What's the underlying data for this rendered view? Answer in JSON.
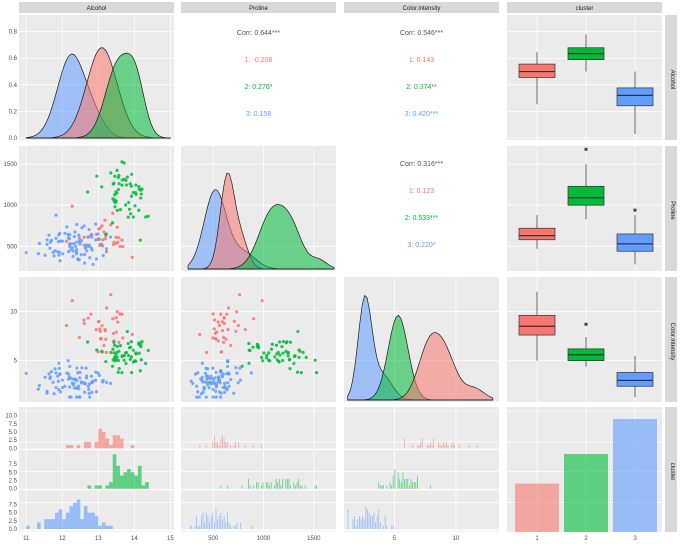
{
  "chart_data": {
    "type": "pairs-matrix",
    "variables": [
      "Alcohol",
      "Proline",
      "Color.intensity",
      "cluster"
    ],
    "clusters": [
      "1",
      "2",
      "3"
    ],
    "colors": {
      "1": "#F8766D",
      "2": "#00BA38",
      "3": "#619CFF"
    },
    "correlations": [
      {
        "pair": "Alcohol-Proline",
        "overall": "Corr: 0.644***",
        "by_cluster": [
          "1: -0.208",
          "2: 0.276*",
          "3: 0.158"
        ]
      },
      {
        "pair": "Alcohol-Color.intensity",
        "overall": "Corr: 0.546***",
        "by_cluster": [
          "1: 0.143",
          "2: 0.374**",
          "3: 0.420***"
        ]
      },
      {
        "pair": "Proline-Color.intensity",
        "overall": "Corr: 0.316***",
        "by_cluster": [
          "1: 0.123",
          "2: 0.533***",
          "3: 0.220*"
        ]
      }
    ],
    "axis_ticks": {
      "Alcohol": [
        "11",
        "12",
        "13",
        "14",
        "15"
      ],
      "Proline": [
        "500",
        "1000",
        "1500"
      ],
      "Color.intensity": [
        "5",
        "10"
      ],
      "cluster": [
        "1",
        "2",
        "3"
      ],
      "alcohol_density_y": [
        "0.0",
        "0.2",
        "0.4",
        "0.6",
        "0.8"
      ],
      "proline_y": [
        "500",
        "1000",
        "1500"
      ],
      "color_y": [
        "5",
        "10"
      ],
      "count_y": [
        "0.0",
        "2.5",
        "5.0",
        "7.5",
        "10.0"
      ]
    },
    "cluster_counts": [
      36,
      58,
      84
    ],
    "boxplots": {
      "Alcohol": [
        {
          "cluster": "1",
          "min": 12.0,
          "q1": 12.9,
          "median": 13.1,
          "q3": 13.35,
          "max": 13.75,
          "outliers": []
        },
        {
          "cluster": "2",
          "min": 13.1,
          "q1": 13.5,
          "median": 13.7,
          "q3": 13.9,
          "max": 14.35,
          "outliers": []
        },
        {
          "cluster": "3",
          "min": 11.0,
          "q1": 11.95,
          "median": 12.3,
          "q3": 12.55,
          "max": 13.1,
          "outliers": []
        }
      ],
      "Proline": [
        {
          "cluster": "1",
          "min": 470,
          "q1": 580,
          "median": 630,
          "q3": 720,
          "max": 880,
          "outliers": []
        },
        {
          "cluster": "2",
          "min": 830,
          "q1": 1000,
          "median": 1090,
          "q3": 1230,
          "max": 1500,
          "outliers": [
            1680
          ]
        },
        {
          "cluster": "3",
          "min": 280,
          "q1": 440,
          "median": 530,
          "q3": 650,
          "max": 880,
          "outliers": [
            940
          ]
        }
      ],
      "Color.intensity": [
        {
          "cluster": "1",
          "min": 5.0,
          "q1": 7.6,
          "median": 8.5,
          "q3": 9.6,
          "max": 12.0,
          "outliers": []
        },
        {
          "cluster": "2",
          "min": 4.4,
          "q1": 5.0,
          "median": 5.6,
          "q3": 6.2,
          "max": 7.4,
          "outliers": [
            8.7
          ]
        },
        {
          "cluster": "3",
          "min": 1.3,
          "q1": 2.4,
          "median": 3.0,
          "q3": 3.8,
          "max": 5.5,
          "outliers": []
        }
      ]
    }
  }
}
